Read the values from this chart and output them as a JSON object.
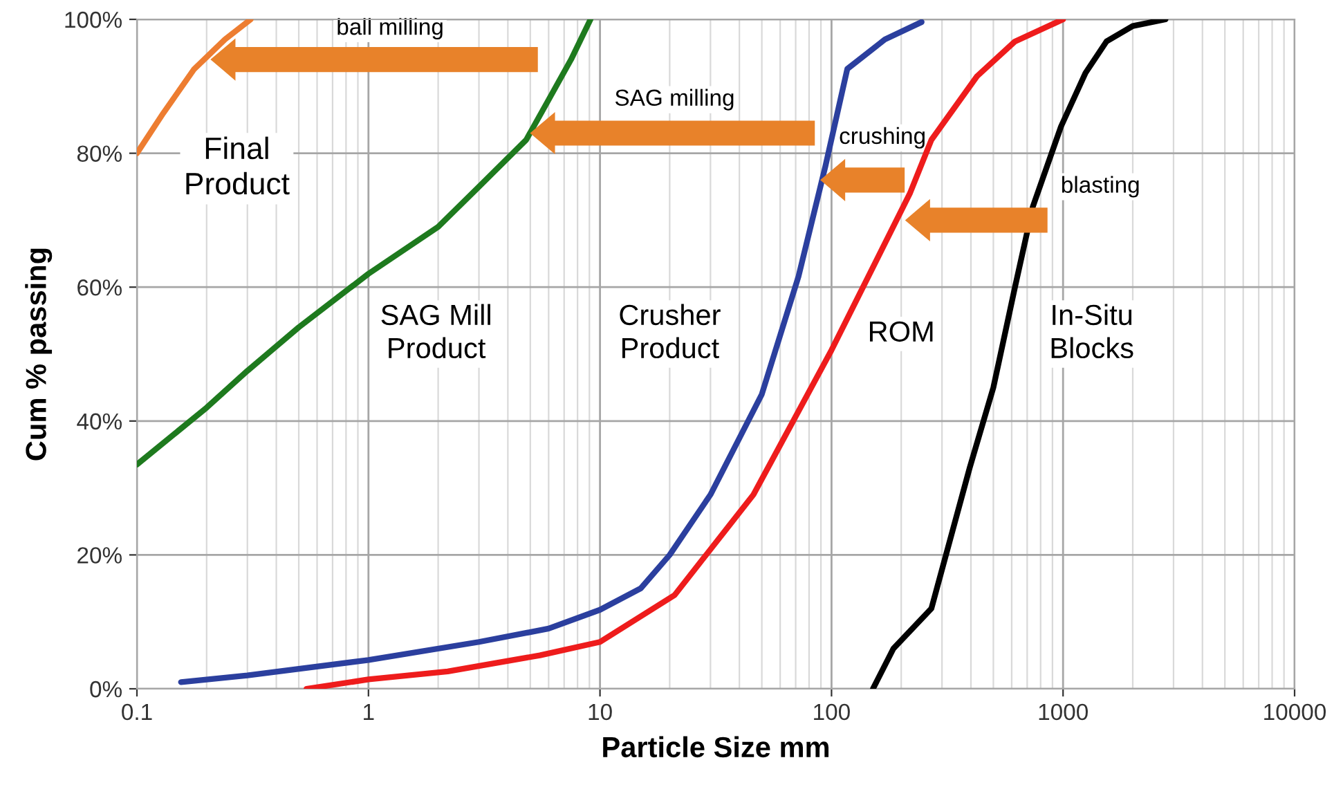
{
  "chart_data": {
    "type": "line",
    "xlabel": "Particle Size mm",
    "ylabel": "Cum % passing",
    "log": "x",
    "xlim": [
      0.1,
      10000
    ],
    "xticks": [
      0.1,
      1,
      10,
      100,
      1000,
      10000
    ],
    "ylim": [
      0,
      100
    ],
    "yticks": [
      {
        "value": 0,
        "label": "0%"
      },
      {
        "value": 20,
        "label": "20%"
      },
      {
        "value": 40,
        "label": "40%"
      },
      {
        "value": 60,
        "label": "60%"
      },
      {
        "value": 80,
        "label": "80%"
      },
      {
        "value": 100,
        "label": "100%"
      }
    ],
    "grid": true,
    "marker": "none",
    "line_style": "solid",
    "series": [
      {
        "color": "#ed7d31",
        "x": [
          0.1,
          0.13,
          0.176,
          0.24,
          0.31
        ],
        "values": [
          80,
          86,
          92.5,
          97,
          100
        ]
      },
      {
        "color": "#1e7a1e",
        "x": [
          0.1,
          0.2,
          0.3,
          0.5,
          1,
          2,
          3,
          4.8,
          6,
          7.5,
          9.1
        ],
        "values": [
          33.5,
          42,
          47.5,
          54,
          62,
          69,
          75,
          82,
          88,
          94,
          100
        ]
      },
      {
        "color": "#2b3f9e",
        "x": [
          0.155,
          0.3,
          1,
          3,
          6,
          10,
          15,
          20,
          30,
          50,
          72,
          94,
          117,
          170,
          245
        ],
        "values": [
          1,
          2,
          4.3,
          7,
          9,
          11.8,
          15,
          20,
          29,
          44,
          61.6,
          78,
          92.6,
          97,
          99.6
        ]
      },
      {
        "color": "#ee1c1c",
        "x": [
          0.54,
          1,
          2.2,
          5.5,
          10,
          21,
          46,
          100,
          218,
          270,
          425,
          620,
          1000
        ],
        "values": [
          0,
          1.4,
          2.6,
          5,
          7,
          14,
          29,
          50.6,
          74,
          82,
          91.5,
          96.7,
          100
        ]
      },
      {
        "color": "#000000",
        "x": [
          151,
          185,
          270,
          395,
          500,
          620,
          740,
          980,
          1250,
          1540,
          2000,
          2770
        ],
        "values": [
          0,
          6,
          12,
          33,
          45,
          60,
          72,
          84,
          92,
          96.7,
          99,
          100
        ]
      }
    ],
    "annotations": [
      "ball milling",
      "SAG milling",
      "crushing",
      "blasting",
      "Final\nProduct",
      "SAG Mill\nProduct",
      "Crusher\nProduct",
      "ROM",
      "In-Situ\nBlocks"
    ]
  }
}
